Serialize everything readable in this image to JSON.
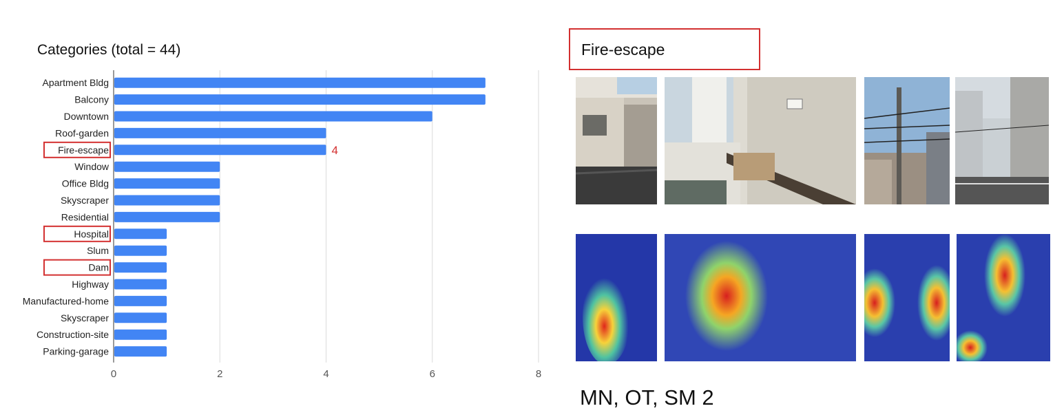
{
  "chart_data": {
    "type": "bar",
    "orientation": "horizontal",
    "title": "Categories (total = 44)",
    "categories": [
      "Apartment Bldg",
      "Balcony",
      "Downtown",
      "Roof-garden",
      "Fire-escape",
      "Window",
      "Office Bldg",
      "Skyscraper",
      "Residential",
      "Hospital",
      "Slum",
      "Dam",
      "Highway",
      "Manufactured-home",
      "Skyscraper",
      "Construction-site",
      "Parking-garage"
    ],
    "values": [
      7,
      7,
      6,
      4,
      4,
      2,
      2,
      2,
      2,
      1,
      1,
      1,
      1,
      1,
      1,
      1,
      1
    ],
    "xticks": [
      "0",
      "2",
      "4",
      "6",
      "8"
    ],
    "xlim": [
      0,
      8
    ],
    "grid": true,
    "bar_color": "#4285f4",
    "highlighted_categories": [
      4,
      9,
      11
    ],
    "highlight_color": "#d32f2f",
    "annotation": {
      "category_index": 4,
      "text": "4"
    }
  },
  "panel": {
    "title": "Fire-escape",
    "footer": "MN, OT, SM 2",
    "photos": [
      {
        "name": "photo-building-corner",
        "kind": "photo"
      },
      {
        "name": "photo-balcony-wall",
        "kind": "photo"
      },
      {
        "name": "photo-power-lines",
        "kind": "photo"
      },
      {
        "name": "photo-street-view",
        "kind": "photo"
      },
      {
        "name": "heatmap-building-corner",
        "kind": "heatmap"
      },
      {
        "name": "heatmap-balcony-wall",
        "kind": "heatmap"
      },
      {
        "name": "heatmap-power-lines",
        "kind": "heatmap"
      },
      {
        "name": "heatmap-street-view",
        "kind": "heatmap"
      }
    ]
  }
}
